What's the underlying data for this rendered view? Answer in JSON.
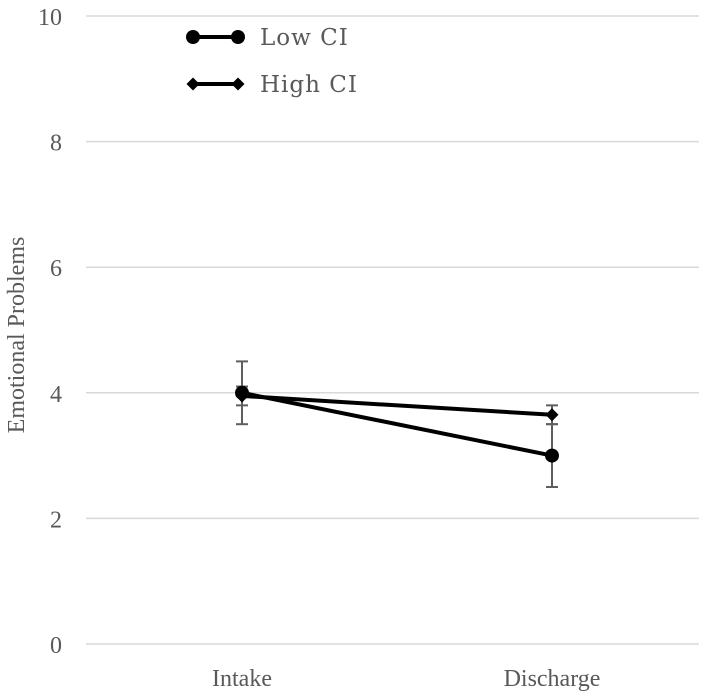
{
  "chart_data": {
    "type": "line",
    "title": "",
    "xlabel": "",
    "ylabel": "Emotional Problems",
    "categories": [
      "Intake",
      "Discharge"
    ],
    "ylim": [
      0,
      10
    ],
    "yticks": [
      0,
      2,
      4,
      6,
      8,
      10
    ],
    "grid": true,
    "legend_position": "top-left",
    "series": [
      {
        "name": "Low CI",
        "marker": "circle",
        "values": [
          4.0,
          3.0
        ],
        "error_low": [
          3.5,
          2.5
        ],
        "error_high": [
          4.5,
          3.5
        ]
      },
      {
        "name": "High CI",
        "marker": "diamond",
        "values": [
          3.95,
          3.65
        ],
        "error_low": [
          3.8,
          3.5
        ],
        "error_high": [
          4.1,
          3.8
        ]
      }
    ]
  }
}
